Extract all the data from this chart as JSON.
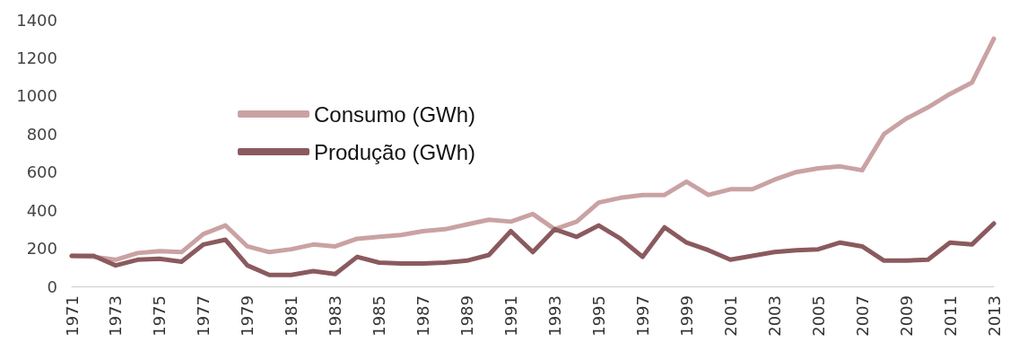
{
  "chart_data": {
    "type": "line",
    "categories": [
      "1971",
      null,
      "1973",
      null,
      "1975",
      null,
      "1977",
      null,
      "1979",
      null,
      "1981",
      null,
      "1983",
      null,
      "1985",
      null,
      "1987",
      null,
      "1989",
      null,
      "1991",
      null,
      "1993",
      null,
      "1995",
      null,
      "1997",
      null,
      "1999",
      null,
      "2001",
      null,
      "2003",
      null,
      "2005",
      null,
      "2007",
      null,
      "2009",
      null,
      "2011",
      null,
      "2013"
    ],
    "series": [
      {
        "name": "Consumo (GWh)",
        "color": "#caa2a3",
        "values": [
          160,
          155,
          140,
          175,
          185,
          180,
          275,
          320,
          210,
          180,
          195,
          220,
          210,
          250,
          260,
          270,
          290,
          300,
          325,
          350,
          340,
          380,
          300,
          340,
          440,
          465,
          480,
          480,
          550,
          480,
          510,
          510,
          560,
          600,
          620,
          630,
          610,
          800,
          880,
          940,
          1010,
          1070,
          1300
        ]
      },
      {
        "name": "Produção (GWh)",
        "color": "#8a5a5e",
        "values": [
          160,
          160,
          110,
          140,
          145,
          130,
          220,
          245,
          110,
          60,
          60,
          80,
          65,
          155,
          125,
          120,
          120,
          125,
          135,
          165,
          290,
          180,
          300,
          260,
          320,
          250,
          155,
          310,
          230,
          190,
          140,
          160,
          180,
          190,
          195,
          230,
          210,
          135,
          135,
          140,
          230,
          220,
          330
        ]
      }
    ],
    "ylim": [
      0,
      1400
    ],
    "yticks": [
      0,
      200,
      400,
      600,
      800,
      1000,
      1200,
      1400
    ],
    "grid": false,
    "legend": "top left",
    "marker": "none",
    "line_style": "solid"
  }
}
